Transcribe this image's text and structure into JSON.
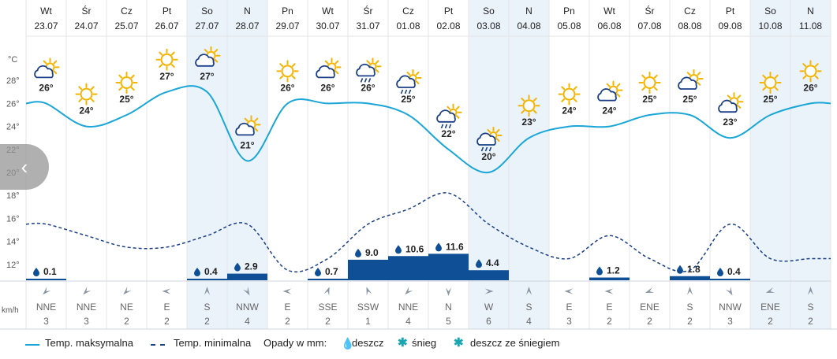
{
  "units": {
    "temp": "°C",
    "wind": "km/h"
  },
  "nav": {
    "prev_glyph": "‹"
  },
  "chart_data": {
    "type": "line",
    "title": "",
    "ylabel": "°C",
    "ylim": [
      10,
      30
    ],
    "y_ticks": [
      "28°",
      "26°",
      "24°",
      "22°",
      "20°",
      "18°",
      "16°",
      "14°",
      "12°"
    ],
    "y_tick_values": [
      28,
      26,
      24,
      22,
      20,
      18,
      16,
      14,
      12
    ],
    "days": [
      {
        "dow": "Wt",
        "date": "23.07",
        "weekend": false,
        "max": 26,
        "min": 15.5,
        "icon": "partly-cloudy-icon",
        "rain": "0.1",
        "rain_value": 0.1,
        "wind_dir": "NNE",
        "wind_speed": "3",
        "wind_angle": 135
      },
      {
        "dow": "Śr",
        "date": "24.07",
        "weekend": false,
        "max": 24,
        "min": 14.5,
        "icon": "sun-icon",
        "rain": "",
        "rain_value": 0,
        "wind_dir": "NNE",
        "wind_speed": "3",
        "wind_angle": 135
      },
      {
        "dow": "Cz",
        "date": "25.07",
        "weekend": false,
        "max": 25,
        "min": 13.5,
        "icon": "sun-icon",
        "rain": "",
        "rain_value": 0,
        "wind_dir": "NE",
        "wind_speed": "2",
        "wind_angle": 135
      },
      {
        "dow": "Pt",
        "date": "26.07",
        "weekend": false,
        "max": 27,
        "min": 13.5,
        "icon": "sun-icon",
        "rain": "",
        "rain_value": 0,
        "wind_dir": "E",
        "wind_speed": "2",
        "wind_angle": 180
      },
      {
        "dow": "So",
        "date": "27.07",
        "weekend": true,
        "max": 27,
        "min": 14.5,
        "icon": "partly-cloudy-icon",
        "rain": "0.4",
        "rain_value": 0.4,
        "wind_dir": "S",
        "wind_speed": "2",
        "wind_angle": 270
      },
      {
        "dow": "N",
        "date": "28.07",
        "weekend": true,
        "max": 21,
        "min": 15.5,
        "icon": "partly-cloudy-icon",
        "rain": "2.9",
        "rain_value": 2.9,
        "wind_dir": "NNW",
        "wind_speed": "4",
        "wind_angle": 60
      },
      {
        "dow": "Pn",
        "date": "29.07",
        "weekend": false,
        "max": 26,
        "min": 11.5,
        "icon": "sun-icon",
        "rain": "",
        "rain_value": 0,
        "wind_dir": "E",
        "wind_speed": "2",
        "wind_angle": 180
      },
      {
        "dow": "Wt",
        "date": "30.07",
        "weekend": false,
        "max": 26,
        "min": 12.5,
        "icon": "partly-cloudy-icon",
        "rain": "0.7",
        "rain_value": 0.7,
        "wind_dir": "SSE",
        "wind_speed": "2",
        "wind_angle": 290
      },
      {
        "dow": "Śr",
        "date": "31.07",
        "weekend": false,
        "max": 26,
        "min": 15.5,
        "icon": "rain-cloud-icon",
        "rain": "9.0",
        "rain_value": 9.0,
        "wind_dir": "SSW",
        "wind_speed": "1",
        "wind_angle": 250
      },
      {
        "dow": "Cz",
        "date": "01.08",
        "weekend": false,
        "max": 25,
        "min": 16.8,
        "icon": "rain-cloud-icon",
        "rain": "10.6",
        "rain_value": 10.6,
        "wind_dir": "NNE",
        "wind_speed": "4",
        "wind_angle": 135
      },
      {
        "dow": "Pt",
        "date": "02.08",
        "weekend": false,
        "max": 22,
        "min": 18.2,
        "icon": "rain-cloud-icon",
        "rain": "11.6",
        "rain_value": 11.6,
        "wind_dir": "N",
        "wind_speed": "5",
        "wind_angle": 90
      },
      {
        "dow": "So",
        "date": "03.08",
        "weekend": true,
        "max": 20,
        "min": 15.5,
        "icon": "rain-cloud-icon",
        "rain": "4.4",
        "rain_value": 4.4,
        "wind_dir": "W",
        "wind_speed": "6",
        "wind_angle": 0
      },
      {
        "dow": "N",
        "date": "04.08",
        "weekend": true,
        "max": 23,
        "min": 13.5,
        "icon": "sun-icon",
        "rain": "",
        "rain_value": 0,
        "wind_dir": "S",
        "wind_speed": "4",
        "wind_angle": 270
      },
      {
        "dow": "Pn",
        "date": "05.08",
        "weekend": false,
        "max": 24,
        "min": 12.5,
        "icon": "sun-icon",
        "rain": "",
        "rain_value": 0,
        "wind_dir": "E",
        "wind_speed": "3",
        "wind_angle": 180
      },
      {
        "dow": "Wt",
        "date": "06.08",
        "weekend": false,
        "max": 24,
        "min": 14.5,
        "icon": "partly-cloudy-icon",
        "rain": "1.2",
        "rain_value": 1.2,
        "wind_dir": "E",
        "wind_speed": "2",
        "wind_angle": 180
      },
      {
        "dow": "Śr",
        "date": "07.08",
        "weekend": false,
        "max": 25,
        "min": 12.5,
        "icon": "sun-icon",
        "rain": "",
        "rain_value": 0,
        "wind_dir": "ENE",
        "wind_speed": "2",
        "wind_angle": 160
      },
      {
        "dow": "Cz",
        "date": "08.08",
        "weekend": false,
        "max": 25,
        "min": 11.5,
        "icon": "partly-cloudy-icon",
        "rain": "1.8",
        "rain_value": 1.8,
        "wind_dir": "S",
        "wind_speed": "2",
        "wind_angle": 270
      },
      {
        "dow": "Pt",
        "date": "09.08",
        "weekend": false,
        "max": 23,
        "min": 15.5,
        "icon": "partly-cloudy-icon",
        "rain": "0.4",
        "rain_value": 0.4,
        "wind_dir": "NNW",
        "wind_speed": "3",
        "wind_angle": 60
      },
      {
        "dow": "So",
        "date": "10.08",
        "weekend": true,
        "max": 25,
        "min": 12.5,
        "icon": "sun-icon",
        "rain": "",
        "rain_value": 0,
        "wind_dir": "ENE",
        "wind_speed": "2",
        "wind_angle": 160
      },
      {
        "dow": "N",
        "date": "11.08",
        "weekend": true,
        "max": 26,
        "min": 12.5,
        "icon": "sun-icon",
        "rain": "",
        "rain_value": 0,
        "wind_dir": "S",
        "wind_speed": "2",
        "wind_angle": 270
      }
    ],
    "series": [
      {
        "name": "Temp. maksymalna",
        "style": "solid",
        "color": "#1aa6d6"
      },
      {
        "name": "Temp. minimalna",
        "style": "dashed",
        "color": "#1a3f86"
      }
    ]
  },
  "legend": {
    "max_label": "Temp. maksymalna",
    "min_label": "Temp. minimalna",
    "precip_label": "Opady w mm:",
    "rain_label": "deszcz",
    "snow_label": "śnieg",
    "mixed_label": "deszcz ze śniegiem"
  },
  "colors": {
    "max_line": "#1aa6d6",
    "min_line": "#1a3f86",
    "rain_bar": "#0e4f96",
    "weekend_bg": "#eaf2fa",
    "grid": "#e6e6e6",
    "sun": "#f5b400",
    "snow": "#1aa6b0"
  }
}
